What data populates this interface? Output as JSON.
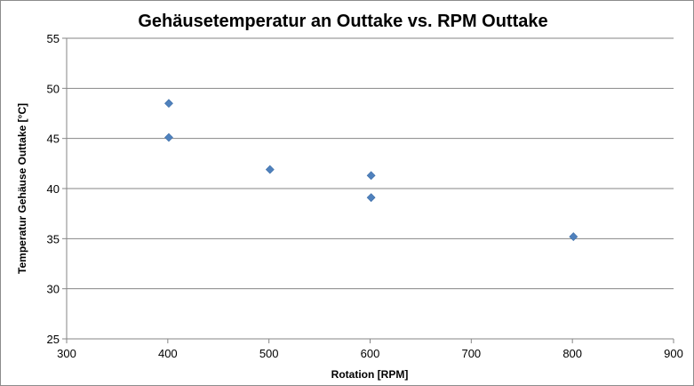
{
  "chart_data": {
    "type": "scatter",
    "title": "Gehäusetemperatur an Outtake vs. RPM Outtake",
    "xlabel": "Rotation [RPM]",
    "ylabel": "Temperatur Gehäuse Outtake [°C]",
    "xlim": [
      300,
      900
    ],
    "ylim": [
      25,
      55
    ],
    "xticks": [
      300,
      400,
      500,
      600,
      700,
      800,
      900
    ],
    "yticks": [
      25,
      30,
      35,
      40,
      45,
      50,
      55
    ],
    "grid": "horizontal",
    "marker_color": "#4f81bd",
    "series": [
      {
        "points": [
          {
            "x": 401,
            "y": 48.5
          },
          {
            "x": 401,
            "y": 45.1
          },
          {
            "x": 501,
            "y": 41.9
          },
          {
            "x": 601,
            "y": 41.3
          },
          {
            "x": 601,
            "y": 39.1
          },
          {
            "x": 801,
            "y": 35.2
          }
        ]
      }
    ]
  }
}
